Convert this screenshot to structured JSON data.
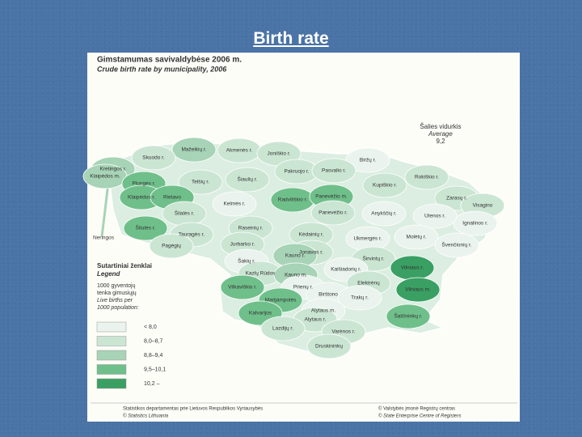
{
  "slide_title": "Birth rate",
  "map": {
    "title": "Gimstamumas savivaldybėse 2006 m.",
    "subtitle": "Crude birth rate by municipality, 2006",
    "average": {
      "label_lt": "Šalies vidurkis",
      "label_en": "Average",
      "value": "9,2"
    },
    "legend": {
      "title_lt": "Sutartiniai ženklai",
      "title_en": "Legend",
      "caption_lt": [
        "1000 gyventojų",
        "tenka gimusiųjų"
      ],
      "caption_en": [
        "Live births per",
        "1000 population:"
      ],
      "classes": [
        {
          "label": "< 8,0",
          "color": "#eaf3ed"
        },
        {
          "label": "8,0–8,7",
          "color": "#cbe5d3"
        },
        {
          "label": "8,8–9,4",
          "color": "#a7d3b6"
        },
        {
          "label": "9,5–10,1",
          "color": "#6fbf8a"
        },
        {
          "label": "10,2 –",
          "color": "#3a9f63"
        }
      ]
    },
    "municipalities": [
      {
        "label": "Mažeikių r.",
        "color": "#a7d3b6"
      },
      {
        "label": "Akmenės r.",
        "color": "#cbe5d3"
      },
      {
        "label": "Joniškio r.",
        "color": "#cbe5d3"
      },
      {
        "label": "Biržų r.",
        "color": "#eaf3ed"
      },
      {
        "label": "Skuodo r.",
        "color": "#cbe5d3"
      },
      {
        "label": "Kretingos r.",
        "color": "#a7d3b6"
      },
      {
        "label": "Klaipėdos m.",
        "color": "#a7d3b6"
      },
      {
        "label": "Plungės r.",
        "color": "#6fbf8a"
      },
      {
        "label": "Telšių r.",
        "color": "#cbe5d3"
      },
      {
        "label": "Šiaulių r.",
        "color": "#cbe5d3"
      },
      {
        "label": "Pakruojo r.",
        "color": "#cbe5d3"
      },
      {
        "label": "Pasvalio r.",
        "color": "#cbe5d3"
      },
      {
        "label": "Rokiškio r.",
        "color": "#cbe5d3"
      },
      {
        "label": "Kupiškio r.",
        "color": "#cbe5d3"
      },
      {
        "label": "Zarasų r.",
        "color": "#cbe5d3"
      },
      {
        "label": "Visagino",
        "color": "#cbe5d3"
      },
      {
        "label": "Ignalinos r.",
        "color": "#eaf3ed"
      },
      {
        "label": "Klaipėdos r.",
        "color": "#6fbf8a"
      },
      {
        "label": "Rietavo",
        "color": "#6fbf8a"
      },
      {
        "label": "Kelmės r.",
        "color": "#eaf3ed"
      },
      {
        "label": "Radviliškio r.",
        "color": "#6fbf8a"
      },
      {
        "label": "Panevėžio m.",
        "color": "#6fbf8a"
      },
      {
        "label": "Panevėžio r.",
        "color": "#cbe5d3"
      },
      {
        "label": "Anykščių r.",
        "color": "#eaf3ed"
      },
      {
        "label": "Utenos r.",
        "color": "#eaf3ed"
      },
      {
        "label": "Šilalės r.",
        "color": "#cbe5d3"
      },
      {
        "label": "Šilutės r.",
        "color": "#6fbf8a"
      },
      {
        "label": "Neringos",
        "color": "#cbe5d3"
      },
      {
        "label": "Tauragės r.",
        "color": "#cbe5d3"
      },
      {
        "label": "Pagėgių",
        "color": "#cbe5d3"
      },
      {
        "label": "Raseinių r.",
        "color": "#cbe5d3"
      },
      {
        "label": "Kėdainių r.",
        "color": "#cbe5d3"
      },
      {
        "label": "Ukmergės r.",
        "color": "#eaf3ed"
      },
      {
        "label": "Molėtų r.",
        "color": "#eaf3ed"
      },
      {
        "label": "Švenčionių r.",
        "color": "#eaf3ed"
      },
      {
        "label": "Jurbarko r.",
        "color": "#cbe5d3"
      },
      {
        "label": "Jonavos r.",
        "color": "#cbe5d3"
      },
      {
        "label": "Šakių r.",
        "color": "#eaf3ed"
      },
      {
        "label": "Kauno r.",
        "color": "#a7d3b6"
      },
      {
        "label": "Širvintų r.",
        "color": "#cbe5d3"
      },
      {
        "label": "Kaišiadorių r.",
        "color": "#eaf3ed"
      },
      {
        "label": "Vilniaus r.",
        "color": "#3a9f63"
      },
      {
        "label": "Kazlų Rūdos",
        "color": "#cbe5d3"
      },
      {
        "label": "Kauno m.",
        "color": "#a7d3b6"
      },
      {
        "label": "Elektrėnų",
        "color": "#cbe5d3"
      },
      {
        "label": "Vilniaus m.",
        "color": "#3a9f63"
      },
      {
        "label": "Vilkaviškio r.",
        "color": "#6fbf8a"
      },
      {
        "label": "Prienų r.",
        "color": "#eaf3ed"
      },
      {
        "label": "Birštono",
        "color": "#eaf3ed"
      },
      {
        "label": "Marijampolės",
        "color": "#6fbf8a"
      },
      {
        "label": "Trakų r.",
        "color": "#eaf3ed"
      },
      {
        "label": "Kalvarijos",
        "color": "#6fbf8a"
      },
      {
        "label": "Alytaus m.",
        "color": "#eaf3ed"
      },
      {
        "label": "Alytaus r.",
        "color": "#cbe5d3"
      },
      {
        "label": "Šalčininkų r.",
        "color": "#6fbf8a"
      },
      {
        "label": "Lazdijų r.",
        "color": "#cbe5d3"
      },
      {
        "label": "Varėnos r.",
        "color": "#cbe5d3"
      },
      {
        "label": "Druskininkų",
        "color": "#cbe5d3"
      }
    ],
    "footer": {
      "left": [
        "Statistikos departamentas prie Lietuvos Respublikos Vyriausybės",
        "© Statistics Lithuania"
      ],
      "right": [
        "© Valstybės įmonė Registrų centras",
        "© State Enterprise Centre of Registers"
      ]
    }
  }
}
